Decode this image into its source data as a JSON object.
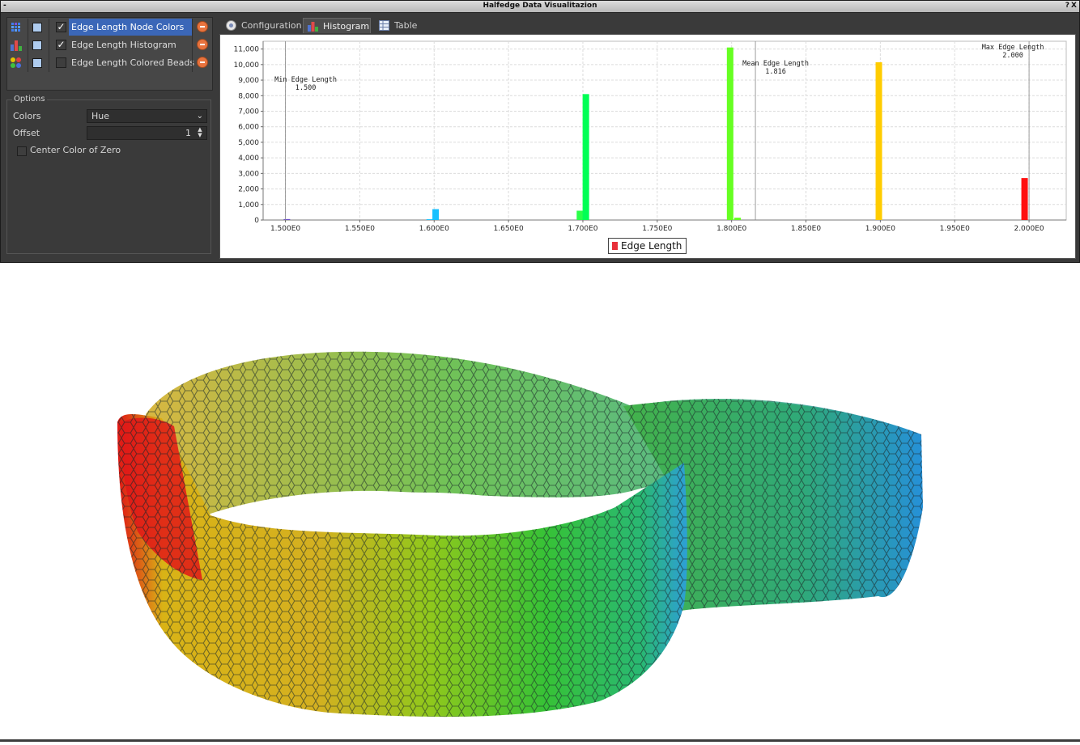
{
  "window": {
    "title": "Halfedge Data Visualitazion",
    "system_menu": "-",
    "help": "?",
    "close": "X"
  },
  "layers": [
    {
      "icon": "node-colors-icon",
      "visible": true,
      "checked": true,
      "label": "Edge Length Node Colors",
      "selected": true
    },
    {
      "icon": "histogram-icon",
      "visible": true,
      "checked": true,
      "label": "Edge Length Histogram",
      "selected": false
    },
    {
      "icon": "colored-beads-icon",
      "visible": true,
      "checked": false,
      "label": "Edge Length Colored Beads",
      "selected": false
    }
  ],
  "options": {
    "legend": "Options",
    "colors_label": "Colors",
    "colors_value": "Hue",
    "offset_label": "Offset",
    "offset_value": "1",
    "center_zero_label": "Center Color of Zero",
    "center_zero_checked": false
  },
  "tabs": [
    {
      "label": "Configuration",
      "icon": "gear-icon",
      "active": false
    },
    {
      "label": "Histogram",
      "icon": "histogram-icon",
      "active": true
    },
    {
      "label": "Table",
      "icon": "table-icon",
      "active": false
    }
  ],
  "chart_data": {
    "type": "bar",
    "series_name": "Edge Length",
    "legend": [
      "Edge Length"
    ],
    "xlim": [
      1.485,
      2.025
    ],
    "ylim": [
      0,
      11500
    ],
    "x_ticks": [
      "1.500E0",
      "1.550E0",
      "1.600E0",
      "1.650E0",
      "1.700E0",
      "1.750E0",
      "1.800E0",
      "1.850E0",
      "1.900E0",
      "1.950E0",
      "2.000E0"
    ],
    "y_ticks": [
      "0",
      "1,000",
      "2,000",
      "3,000",
      "4,000",
      "5,000",
      "6,000",
      "7,000",
      "8,000",
      "9,000",
      "10,000",
      "11,000"
    ],
    "grid": true,
    "bars": [
      {
        "x": 1.501,
        "value": 60,
        "color": "#6a4cc9"
      },
      {
        "x": 1.601,
        "value": 700,
        "color": "#17c0ff"
      },
      {
        "x": 1.597,
        "value": 50,
        "color": "#17c0ff"
      },
      {
        "x": 1.698,
        "value": 600,
        "color": "#2bff49"
      },
      {
        "x": 1.702,
        "value": 8100,
        "color": "#00ff55"
      },
      {
        "x": 1.799,
        "value": 11100,
        "color": "#66ff22"
      },
      {
        "x": 1.804,
        "value": 150,
        "color": "#66ff22"
      },
      {
        "x": 1.899,
        "value": 10150,
        "color": "#ffcc00"
      },
      {
        "x": 1.997,
        "value": 2700,
        "color": "#ff1010"
      }
    ],
    "markers": [
      {
        "x": 1.5,
        "label": "Min Edge Length",
        "value": "1.500"
      },
      {
        "x": 1.816,
        "label": "Mean Edge Length",
        "value": "1.816"
      },
      {
        "x": 2.0,
        "label": "Max Edge Length",
        "value": "2.000"
      }
    ]
  }
}
